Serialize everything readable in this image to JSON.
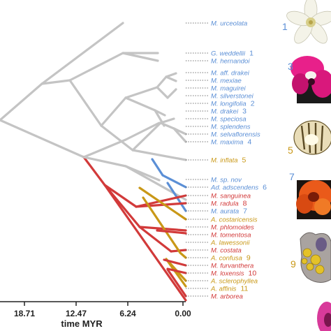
{
  "colors": {
    "gray": "#c4c4c4",
    "blue": "#5b8fd6",
    "red": "#d23a3a",
    "gold": "#c99817"
  },
  "taxa": [
    {
      "name": "M. urceolata",
      "color": "blue",
      "num": ""
    },
    {
      "name": "G. weddellii",
      "color": "blue",
      "num": "1"
    },
    {
      "name": "M. hernandoi",
      "color": "blue",
      "num": ""
    },
    {
      "name": "M. aff. drakei",
      "color": "blue",
      "num": ""
    },
    {
      "name": "M. mexiae",
      "color": "blue",
      "num": ""
    },
    {
      "name": "M. maguirei",
      "color": "blue",
      "num": ""
    },
    {
      "name": "M. silverstonei",
      "color": "blue",
      "num": ""
    },
    {
      "name": "M. longifolia",
      "color": "blue",
      "num": "2"
    },
    {
      "name": "M. drakei",
      "color": "blue",
      "num": "3"
    },
    {
      "name": "M. speciosa",
      "color": "blue",
      "num": ""
    },
    {
      "name": "M. splendens",
      "color": "blue",
      "num": ""
    },
    {
      "name": "M. selvaflorensis",
      "color": "blue",
      "num": ""
    },
    {
      "name": "M. maxima",
      "color": "blue",
      "num": "4"
    },
    {
      "name": "M. inflata",
      "color": "gold",
      "num": "5"
    },
    {
      "name": "M. sp. nov",
      "color": "blue",
      "num": ""
    },
    {
      "name": "Ad. adscendens",
      "color": "blue",
      "num": "6"
    },
    {
      "name": "M. sanguinea",
      "color": "red",
      "num": ""
    },
    {
      "name": "M. radula",
      "color": "red",
      "num": "8"
    },
    {
      "name": "M. aurata",
      "color": "blue",
      "num": "7"
    },
    {
      "name": "A. costaricensis",
      "color": "gold",
      "num": ""
    },
    {
      "name": "M. phlomoides",
      "color": "red",
      "num": ""
    },
    {
      "name": "M. tomentosa",
      "color": "red",
      "num": ""
    },
    {
      "name": "A. lawessonii",
      "color": "gold",
      "num": ""
    },
    {
      "name": "M. costata",
      "color": "red",
      "num": ""
    },
    {
      "name": "A. confusa",
      "color": "gold",
      "num": "9"
    },
    {
      "name": "M. furvanthera",
      "color": "red",
      "num": ""
    },
    {
      "name": "M. loxensis",
      "color": "red",
      "num": "10"
    },
    {
      "name": "A. sclerophyllea",
      "color": "gold",
      "num": ""
    },
    {
      "name": "A. affinis",
      "color": "gold",
      "num": "11"
    },
    {
      "name": "M. arborea",
      "color": "red",
      "num": ""
    }
  ],
  "axis": {
    "title": "time MYR",
    "ticks": [
      "18.71",
      "12.47",
      "6.24",
      "0.00"
    ]
  },
  "photo_labels": [
    {
      "text": "1",
      "color": "blue"
    },
    {
      "text": "3",
      "color": "blue"
    },
    {
      "text": "5",
      "color": "gold"
    },
    {
      "text": "7",
      "color": "blue"
    },
    {
      "text": "9",
      "color": "gold"
    }
  ],
  "photos": [
    "white-flower",
    "magenta-flower",
    "cream-flower",
    "orange-flower",
    "gray-flower",
    "pink-flower"
  ]
}
